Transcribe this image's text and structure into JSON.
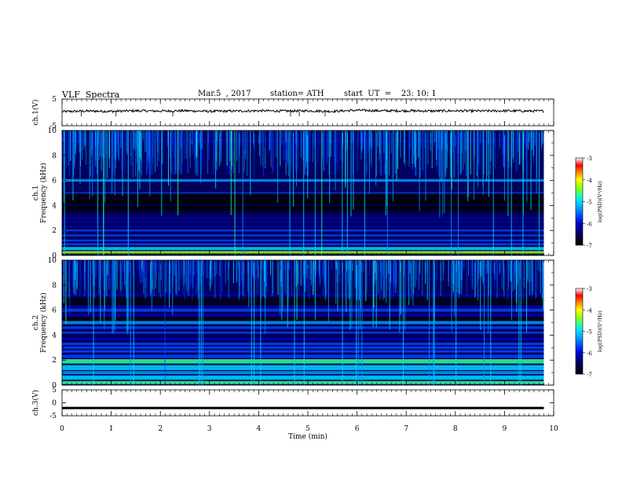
{
  "header": {
    "title": "VLF  Spectra",
    "date": "Mar.5  , 2017",
    "station": "station= ATH",
    "start": "start  UT  =    23: 10: 1"
  },
  "chart_data": [
    {
      "type": "line",
      "panel": "ch1-waveform",
      "ylabel": "ch.1(V)",
      "ylim": [
        -5,
        5
      ],
      "yticks": [
        "5",
        "-5"
      ],
      "x": [
        0,
        0.5,
        1,
        1.5,
        2,
        2.5,
        3,
        3.5,
        4,
        4.5,
        5,
        5.5,
        6,
        6.5,
        7,
        7.5,
        8,
        8.5,
        9,
        9.5,
        9.8
      ],
      "values": [
        0.3,
        0.5,
        0.4,
        0.6,
        0.5,
        0.6,
        0.4,
        0.5,
        0.6,
        0.5,
        0.6,
        0.4,
        0.8,
        0.6,
        0.6,
        0.5,
        0.6,
        0.5,
        0.6,
        0.5,
        0.5
      ]
    },
    {
      "type": "heatmap",
      "panel": "ch1-spectrogram",
      "ylabel": "ch.1 Frequency (kHz)",
      "ylim": [
        0,
        10
      ],
      "yticks": [
        "0",
        "2",
        "4",
        "6",
        "8",
        "10"
      ],
      "colorbar": {
        "label": "log(PSD)(V²/Hz)",
        "range": [
          -7,
          -3
        ],
        "ticks": [
          "-3",
          "-4",
          "-5",
          "-6",
          "-7"
        ]
      }
    },
    {
      "type": "heatmap",
      "panel": "ch2-spectrogram",
      "ylabel": "ch.2 Frequency (kHz)",
      "ylim": [
        0,
        10
      ],
      "yticks": [
        "0",
        "2",
        "4",
        "6",
        "8",
        "10"
      ],
      "colorbar": {
        "label": "log(PSD)(V²/Hz)",
        "range": [
          -7,
          -3
        ],
        "ticks": [
          "-3",
          "-4",
          "-5",
          "-6",
          "-7"
        ]
      }
    },
    {
      "type": "line",
      "panel": "ch3-waveform",
      "ylabel": "ch.3(V)",
      "ylim": [
        -5,
        5
      ],
      "yticks": [
        "5",
        "0",
        "-5"
      ],
      "x": [
        0,
        9.8
      ],
      "values": [
        -2,
        -2
      ]
    }
  ],
  "xaxis": {
    "label": "Time  (min)",
    "range": [
      0,
      10
    ],
    "ticks": [
      "0",
      "1",
      "2",
      "3",
      "4",
      "5",
      "6",
      "7",
      "8",
      "9",
      "10"
    ]
  },
  "colors": {
    "spectrum": [
      "#000000",
      "#000033",
      "#00007a",
      "#0000d0",
      "#0044ff",
      "#0099ff",
      "#00d8ff",
      "#33ff99",
      "#99ff00",
      "#ffff00",
      "#ff8800",
      "#ff0000",
      "#ffffff"
    ]
  }
}
